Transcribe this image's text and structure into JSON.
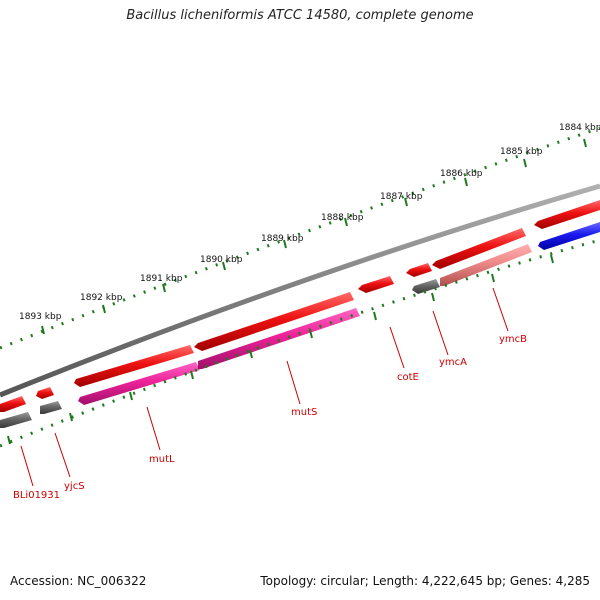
{
  "title": "Bacillus licheniformis ATCC 14580, complete genome",
  "footer": {
    "accession": "Accession: NC_006322",
    "summary": "Topology: circular; Length: 4,222,645 bp; Genes: 4,285"
  },
  "scale_labels": [
    "1884 kbp",
    "1885 kbp",
    "1886 kbp",
    "1887 kbp",
    "1888 kbp",
    "1889 kbp",
    "1890 kbp",
    "1891 kbp",
    "1892 kbp",
    "1893 kbp"
  ],
  "gene_labels": [
    "BLi01931",
    "yjcS",
    "mutL",
    "mutS",
    "cotE",
    "ymcA",
    "ymcB"
  ],
  "colors": {
    "backbone": "#808080",
    "scale": "#1f7a1f",
    "gene_red": "#ee1111",
    "gene_magenta": "#ee2299",
    "gene_pink": "#ee8888",
    "gene_grey": "#666666",
    "gene_blue": "#1a1aee",
    "label_red": "#cc0000"
  }
}
